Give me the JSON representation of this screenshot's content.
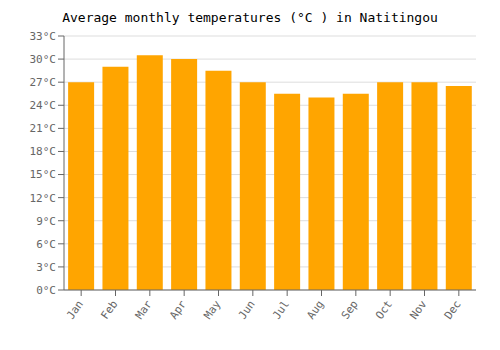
{
  "chart_data": {
    "type": "bar",
    "title": "Average monthly temperatures (°C ) in Natitingou",
    "categories": [
      "Jan",
      "Feb",
      "Mar",
      "Apr",
      "May",
      "Jun",
      "Jul",
      "Aug",
      "Sep",
      "Oct",
      "Nov",
      "Dec"
    ],
    "values": [
      27.0,
      29.0,
      30.5,
      30.0,
      28.5,
      27.0,
      25.5,
      25.0,
      25.5,
      27.0,
      27.0,
      26.5
    ],
    "color": "#FFA500",
    "ylim": [
      0,
      33
    ],
    "yticks": [
      {
        "value": 0,
        "label": "0°C"
      },
      {
        "value": 3,
        "label": "3°C"
      },
      {
        "value": 6,
        "label": "6°C"
      },
      {
        "value": 9,
        "label": "9°C"
      },
      {
        "value": 12,
        "label": "12°C"
      },
      {
        "value": 15,
        "label": "15°C"
      },
      {
        "value": 18,
        "label": "18°C"
      },
      {
        "value": 21,
        "label": "21°C"
      },
      {
        "value": 24,
        "label": "24°C"
      },
      {
        "value": 27,
        "label": "27°C"
      },
      {
        "value": 30,
        "label": "30°C"
      },
      {
        "value": 33,
        "label": "33°C"
      }
    ],
    "grid": true
  }
}
